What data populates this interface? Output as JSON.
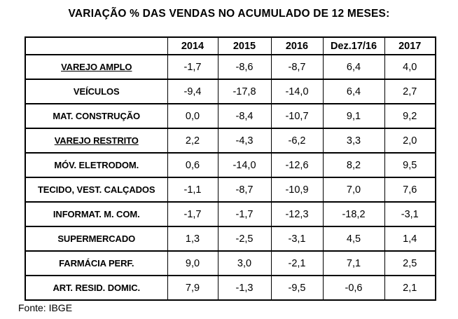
{
  "title": "VARIAÇÃO % DAS VENDAS NO ACUMULADO DE 12 MESES:",
  "footer": {
    "source": "Fonte: IBGE"
  },
  "colors": {
    "background": "#ffffff",
    "text": "#000000",
    "border": "#000000"
  },
  "table": {
    "columns": [
      "",
      "2014",
      "2015",
      "2016",
      "Dez.17/16",
      "2017"
    ],
    "rows": [
      {
        "label": "VAREJO AMPLO",
        "underline": true,
        "values": [
          "-1,7",
          "-8,6",
          "-8,7",
          "6,4",
          "4,0"
        ]
      },
      {
        "label": "VEÍCULOS",
        "underline": false,
        "values": [
          "-9,4",
          "-17,8",
          "-14,0",
          "6,4",
          "2,7"
        ]
      },
      {
        "label": "MAT. CONSTRUÇÃO",
        "underline": false,
        "values": [
          "0,0",
          "-8,4",
          "-10,7",
          "9,1",
          "9,2"
        ]
      },
      {
        "label": "VAREJO RESTRITO",
        "underline": true,
        "values": [
          "2,2",
          "-4,3",
          "-6,2",
          "3,3",
          "2,0"
        ]
      },
      {
        "label": "MÓV. ELETRODOM.",
        "underline": false,
        "values": [
          "0,6",
          "-14,0",
          "-12,6",
          "8,2",
          "9,5"
        ]
      },
      {
        "label": "TECIDO, VEST. CALÇADOS",
        "underline": false,
        "values": [
          "-1,1",
          "-8,7",
          "-10,9",
          "7,0",
          "7,6"
        ]
      },
      {
        "label": "INFORMAT. M. COM.",
        "underline": false,
        "values": [
          "-1,7",
          "-1,7",
          "-12,3",
          "-18,2",
          "-3,1"
        ]
      },
      {
        "label": "SUPERMERCADO",
        "underline": false,
        "values": [
          "1,3",
          "-2,5",
          "-3,1",
          "4,5",
          "1,4"
        ]
      },
      {
        "label": "FARMÁCIA PERF.",
        "underline": false,
        "values": [
          "9,0",
          "3,0",
          "-2,1",
          "7,1",
          "2,5"
        ]
      },
      {
        "label": "ART. RESID. DOMIC.",
        "underline": false,
        "values": [
          "7,9",
          "-1,3",
          "-9,5",
          "-0,6",
          "2,1"
        ]
      }
    ]
  },
  "chart_data": {
    "type": "table",
    "title": "VARIAÇÃO % DAS VENDAS NO ACUMULADO DE 12 MESES:",
    "columns": [
      "2014",
      "2015",
      "2016",
      "Dez.17/16",
      "2017"
    ],
    "rows": [
      {
        "label": "VAREJO AMPLO",
        "values": [
          -1.7,
          -8.6,
          -8.7,
          6.4,
          4.0
        ]
      },
      {
        "label": "VEÍCULOS",
        "values": [
          -9.4,
          -17.8,
          -14.0,
          6.4,
          2.7
        ]
      },
      {
        "label": "MAT. CONSTRUÇÃO",
        "values": [
          0.0,
          -8.4,
          -10.7,
          9.1,
          9.2
        ]
      },
      {
        "label": "VAREJO RESTRITO",
        "values": [
          2.2,
          -4.3,
          -6.2,
          3.3,
          2.0
        ]
      },
      {
        "label": "MÓV. ELETRODOM.",
        "values": [
          0.6,
          -14.0,
          -12.6,
          8.2,
          9.5
        ]
      },
      {
        "label": "TECIDO, VEST. CALÇADOS",
        "values": [
          -1.1,
          -8.7,
          -10.9,
          7.0,
          7.6
        ]
      },
      {
        "label": "INFORMAT. M. COM.",
        "values": [
          -1.7,
          -1.7,
          -12.3,
          -18.2,
          -3.1
        ]
      },
      {
        "label": "SUPERMERCADO",
        "values": [
          1.3,
          -2.5,
          -3.1,
          4.5,
          1.4
        ]
      },
      {
        "label": "FARMÁCIA PERF.",
        "values": [
          9.0,
          3.0,
          -2.1,
          7.1,
          2.5
        ]
      },
      {
        "label": "ART. RESID. DOMIC.",
        "values": [
          7.9,
          -1.3,
          -9.5,
          -0.6,
          2.1
        ]
      }
    ],
    "units": "percent",
    "decimal_separator": ",",
    "source": "Fonte: IBGE"
  }
}
